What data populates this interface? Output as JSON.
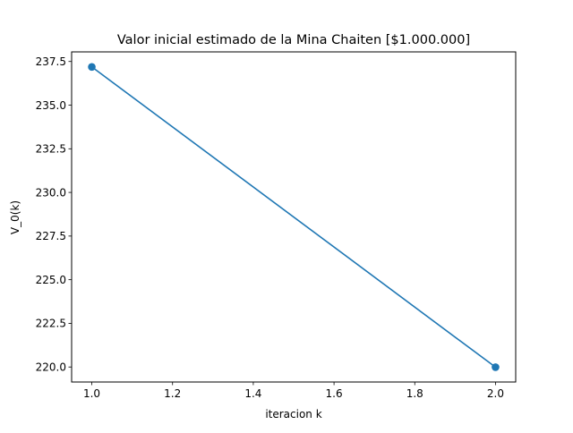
{
  "chart_data": {
    "type": "line",
    "title": "Valor inicial estimado de la Mina Chaiten [$1.000.000]",
    "xlabel": "iteracion k",
    "ylabel": "V_0(k)",
    "xlim": [
      0.95,
      2.05
    ],
    "ylim": [
      219.14,
      238.05
    ],
    "x_ticks": [
      1.0,
      1.2,
      1.4,
      1.6,
      1.8,
      2.0
    ],
    "x_tick_labels": [
      "1.0",
      "1.2",
      "1.4",
      "1.6",
      "1.8",
      "2.0"
    ],
    "y_ticks": [
      220.0,
      222.5,
      225.0,
      227.5,
      230.0,
      232.5,
      235.0,
      237.5
    ],
    "y_tick_labels": [
      "220.0",
      "222.5",
      "225.0",
      "227.5",
      "230.0",
      "232.5",
      "235.0",
      "237.5"
    ],
    "grid": false,
    "legend": "none",
    "series": [
      {
        "color": "#1f77b4",
        "marker": "circle",
        "x": [
          1.0,
          2.0
        ],
        "y": [
          237.19,
          219.99
        ]
      }
    ]
  }
}
